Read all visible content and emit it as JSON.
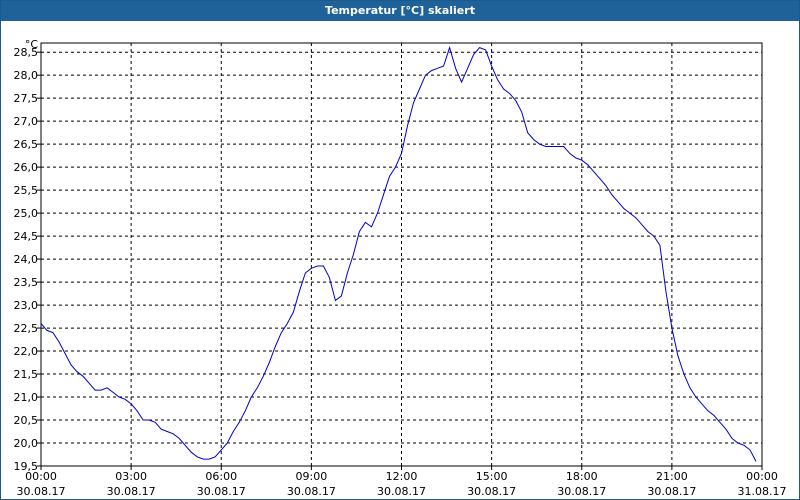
{
  "window": {
    "title": "Temperatur [°C] skaliert"
  },
  "chart_data": {
    "type": "line",
    "title": "Temperatur [°C] skaliert",
    "ylabel": "°C",
    "xlabel": "",
    "ylim": [
      19.5,
      28.7
    ],
    "xlim": [
      0,
      24
    ],
    "grid": true,
    "y_ticks": [
      "19,5",
      "20,0",
      "20,5",
      "21,0",
      "21,5",
      "22,0",
      "22,5",
      "23,0",
      "23,5",
      "24,0",
      "24,5",
      "25,0",
      "25,5",
      "26,0",
      "26,5",
      "27,0",
      "27,5",
      "28,0",
      "28,5"
    ],
    "x_ticks": [
      {
        "time": "00:00",
        "date": "30.08.17"
      },
      {
        "time": "03:00",
        "date": "30.08.17"
      },
      {
        "time": "06:00",
        "date": "30.08.17"
      },
      {
        "time": "09:00",
        "date": "30.08.17"
      },
      {
        "time": "12:00",
        "date": "30.08.17"
      },
      {
        "time": "15:00",
        "date": "30.08.17"
      },
      {
        "time": "18:00",
        "date": "30.08.17"
      },
      {
        "time": "21:00",
        "date": "30.08.17"
      },
      {
        "time": "00:00",
        "date": "31.08.17"
      }
    ],
    "series": [
      {
        "color": "#0000cc",
        "x": [
          0,
          0.2,
          0.4,
          0.6,
          0.8,
          1.0,
          1.2,
          1.4,
          1.6,
          1.8,
          2.0,
          2.2,
          2.4,
          2.6,
          2.8,
          3.0,
          3.2,
          3.4,
          3.6,
          3.8,
          4.0,
          4.2,
          4.4,
          4.6,
          4.8,
          5.0,
          5.2,
          5.4,
          5.6,
          5.8,
          6.0,
          6.2,
          6.4,
          6.6,
          6.8,
          7.0,
          7.2,
          7.4,
          7.6,
          7.8,
          8.0,
          8.2,
          8.4,
          8.6,
          8.8,
          9.0,
          9.2,
          9.4,
          9.6,
          9.8,
          10.0,
          10.2,
          10.4,
          10.6,
          10.8,
          11.0,
          11.2,
          11.4,
          11.6,
          11.8,
          12.0,
          12.2,
          12.4,
          12.6,
          12.8,
          13.0,
          13.2,
          13.4,
          13.6,
          13.8,
          14.0,
          14.2,
          14.4,
          14.6,
          14.8,
          15.0,
          15.2,
          15.4,
          15.6,
          15.8,
          16.0,
          16.2,
          16.4,
          16.6,
          16.8,
          17.0,
          17.2,
          17.4,
          17.6,
          17.8,
          18.0,
          18.2,
          18.4,
          18.6,
          18.8,
          19.0,
          19.2,
          19.4,
          19.6,
          19.8,
          20.0,
          20.2,
          20.4,
          20.6,
          20.8,
          21.0,
          21.2,
          21.4,
          21.6,
          21.8,
          22.0,
          22.2,
          22.4,
          22.6,
          22.8,
          23.0,
          23.2,
          23.4,
          23.6,
          23.8
        ],
        "values": [
          22.6,
          22.45,
          22.4,
          22.2,
          21.95,
          21.7,
          21.55,
          21.45,
          21.3,
          21.15,
          21.15,
          21.2,
          21.1,
          21.0,
          20.95,
          20.85,
          20.7,
          20.5,
          20.5,
          20.45,
          20.3,
          20.25,
          20.2,
          20.1,
          19.95,
          19.8,
          19.7,
          19.65,
          19.65,
          19.7,
          19.85,
          20.0,
          20.25,
          20.45,
          20.7,
          21.0,
          21.2,
          21.45,
          21.75,
          22.1,
          22.4,
          22.6,
          22.85,
          23.3,
          23.7,
          23.8,
          23.85,
          23.85,
          23.6,
          23.1,
          23.2,
          23.7,
          24.1,
          24.6,
          24.8,
          24.7,
          25.0,
          25.4,
          25.8,
          26.0,
          26.3,
          26.9,
          27.4,
          27.7,
          28.0,
          28.1,
          28.15,
          28.2,
          28.6,
          28.15,
          27.85,
          28.15,
          28.45,
          28.6,
          28.55,
          28.2,
          27.9,
          27.7,
          27.6,
          27.45,
          27.2,
          26.75,
          26.6,
          26.5,
          26.45,
          26.45,
          26.45,
          26.45,
          26.3,
          26.2,
          26.15,
          26.05,
          25.9,
          25.75,
          25.6,
          25.4,
          25.25,
          25.1,
          25.0,
          24.9,
          24.75,
          24.6,
          24.5,
          24.3,
          23.3,
          22.5,
          21.9,
          21.5,
          21.2,
          21.0,
          20.85,
          20.7,
          20.6,
          20.45,
          20.3,
          20.1,
          20.0,
          19.95,
          19.85,
          19.6
        ]
      }
    ]
  }
}
